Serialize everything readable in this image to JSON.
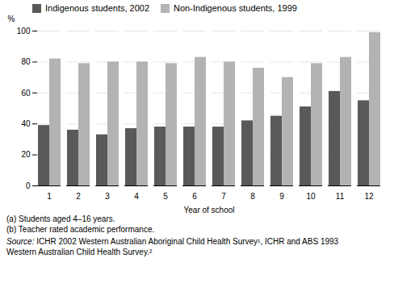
{
  "chart_data": {
    "type": "bar",
    "categories": [
      "1",
      "2",
      "3",
      "4",
      "5",
      "6",
      "7",
      "8",
      "9",
      "10",
      "11",
      "12"
    ],
    "series": [
      {
        "name": "Indigenous students, 2002",
        "color": "#595959",
        "values": [
          39,
          36,
          33,
          37,
          38,
          38,
          38,
          42,
          45,
          51,
          61,
          55
        ]
      },
      {
        "name": "Non-Indigenous students, 1999",
        "color": "#b3b3b3",
        "values": [
          82,
          79,
          80,
          80,
          79,
          83,
          80,
          76,
          70,
          79,
          83,
          99
        ]
      }
    ],
    "xlabel": "Year of school",
    "ylabel": "%",
    "ylim": [
      0,
      100
    ],
    "yticks": [
      0,
      20,
      40,
      60,
      80,
      100
    ],
    "grid": true,
    "legend": "top",
    "annotations": [
      "(a) Students aged 4–16 years.",
      "(b) Teacher rated academic performance."
    ],
    "source": "Source: ICHR 2002 Western Australian Aboriginal Child Health Survey¹, ICHR and ABS 1993\nWestern Australian Child Health Survey.²"
  }
}
